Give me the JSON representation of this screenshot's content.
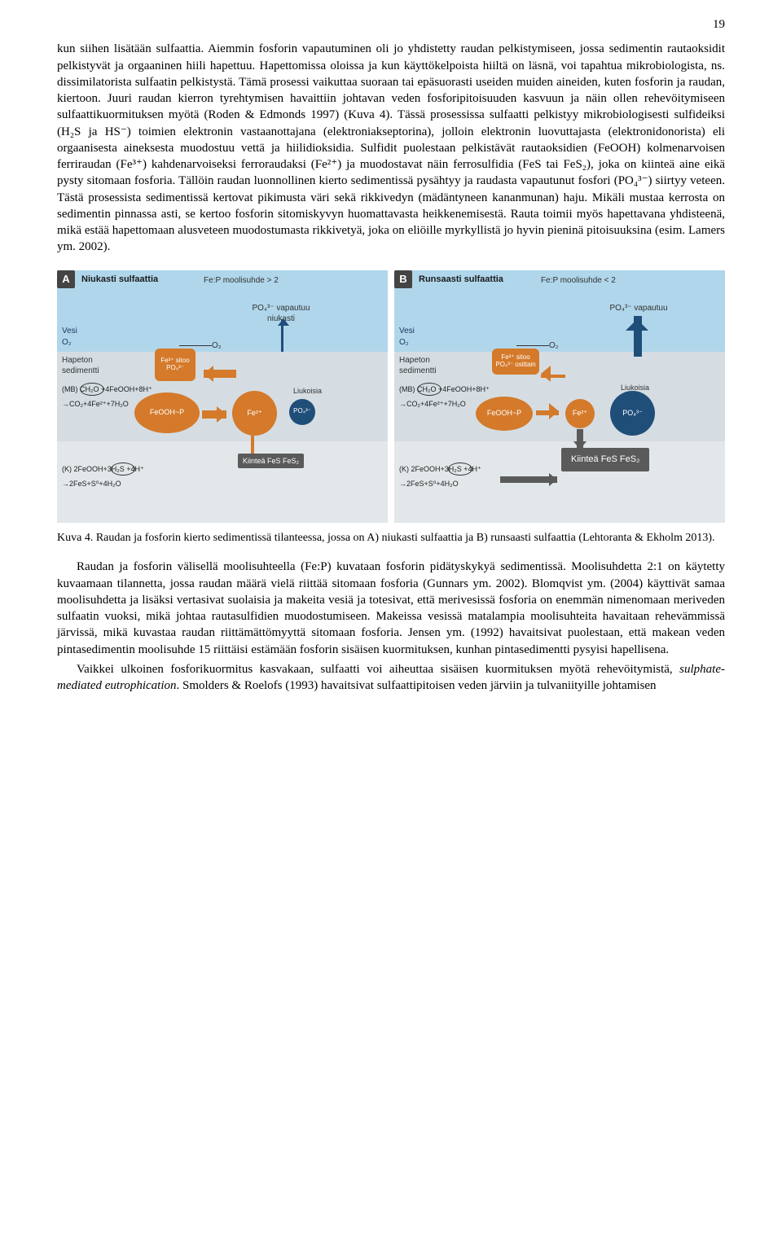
{
  "page_number": "19",
  "para1": "kun siihen lisätään sulfaattia. Aiemmin fosforin vapautuminen oli jo yhdistetty raudan pelkistymiseen, jossa sedimentin rautaoksidit pelkistyvät ja orgaaninen hiili hapettuu. Hapettomissa oloissa ja kun käyttökelpoista hiiltä on läsnä, voi tapahtua mikrobiologista, ns. dissimilatorista sulfaatin pelkistystä. Tämä prosessi vaikuttaa suoraan tai epäsuorasti useiden muiden aineiden, kuten fosforin ja raudan, kiertoon. Juuri raudan kierron tyrehtymisen havaittiin johtavan veden fosforipitoisuuden kasvuun ja näin ollen rehevöitymiseen sulfaattikuormituksen myötä (Roden & Edmonds 1997) (Kuva 4). Tässä prosessissa sulfaatti pelkistyy mikrobiologisesti sulfideiksi (H₂S ja HS⁻) toimien elektronin vastaanottajana (elektroniakseptorina), jolloin elektronin luovuttajasta (elektronidonorista) eli orgaanisesta aineksesta muodostuu vettä ja hiilidioksidia. Sulfidit puolestaan pelkistävät rautaoksidien (FeOOH) kolmenarvoisen ferriraudan (Fe³⁺) kahdenarvoiseksi ferroraudaksi (Fe²⁺) ja muodostavat näin ferrosulfidia (FeS tai FeS₂), joka on kiinteä aine eikä pysty sitomaan fosforia. Tällöin raudan luonnollinen kierto sedimentissä pysähtyy ja raudasta vapautunut fosfori (PO₄³⁻) siirtyy veteen. Tästä prosessista sedimentissä kertovat pikimusta väri sekä rikkivedyn (mädäntyneen kananmunan) haju. Mikäli mustaa kerrosta on sedimentin pinnassa asti, se kertoo fosforin sitomiskyvyn huomattavasta heikkenemisestä. Rauta toimii myös hapettavana yhdisteenä, mikä estää hapettomaan alusveteen muodostumasta rikkivetyä, joka on eliöille myrkyllistä jo hyvin pieninä pitoisuuksina (esim. Lamers ym. 2002).",
  "caption": "Kuva 4. Raudan ja fosforin kierto sedimentissä tilanteessa, jossa on A) niukasti sulfaattia ja B) runsaasti sulfaattia (Lehtoranta & Ekholm 2013).",
  "para2": "Raudan ja fosforin välisellä moolisuhteella (Fe:P) kuvataan fosforin pidätyskykyä sedimentissä. Moolisuhdetta 2:1 on käytetty kuvaamaan tilannetta, jossa raudan määrä vielä riittää sitomaan fosforia (Gunnars ym. 2002). Blomqvist ym. (2004) käyttivät samaa moolisuhdetta ja lisäksi vertasivat suolaisia ja makeita vesiä ja totesivat, että merivesissä fosforia on enemmän nimenomaan meriveden sulfaatin vuoksi, mikä johtaa rautasulfidien muodostumiseen. Makeissa vesissä matalampia moolisuhteita havaitaan rehevämmissä järvissä, mikä kuvastaa raudan riittämättömyyttä sitomaan fosforia. Jensen ym. (1992) havaitsivat puolestaan, että makean veden pintasedimentin moolisuhde 15 riittäisi estämään fosforin sisäisen kuormituksen, kunhan pintasedimentti pysyisi hapellisena.",
  "para3": "Vaikkei ulkoinen fosforikuormitus kasvakaan, sulfaatti voi aiheuttaa sisäisen kuormituksen myötä rehevöitymistä, sulphate-mediated eutrophication. Smolders & Roelofs (1993) havaitsivat sulfaattipitoisen veden järviin ja tulvaniityille johtamisen",
  "figure": {
    "panels": [
      {
        "badge": "A",
        "title": "Niukasti sulfaattia",
        "feratio": "Fe:P moolisuhde > 2",
        "po4_release": "PO₄³⁻ vapautuu niukasti",
        "fe3_binds": "Fe³⁺ sitoo PO₄³⁻",
        "kbox": "Kiinteä\nFeS\nFeS₂",
        "water_label": "Vesi",
        "o2_label": "O₂",
        "sed_label": "Hapeton sedimentti",
        "eq1": "(MB) CH₂O +4FeOOH+8H⁺",
        "eq2": "→CO₂+4Fe²⁺+7H₂O",
        "eq3": "(K) 2FeOOH+3H₂S +4H⁺",
        "eq4": "→2FeS+S⁰+4H₂O",
        "feooh_p": "FeOOH~P",
        "fe2": "Fe²⁺",
        "po4": "PO₄³⁻",
        "liuk": "Liukoisia",
        "colors": {
          "water": "#b0d6eb",
          "sed1": "#d5dde2",
          "sed2": "#e2e7ea",
          "orange": "#d47a2a",
          "blue": "#1f4e79",
          "grey": "#5a5a5a"
        }
      },
      {
        "badge": "B",
        "title": "Runsaasti sulfaattia",
        "feratio": "Fe:P moolisuhde < 2",
        "po4_release": "PO₄³⁻ vapautuu",
        "fe3_binds": "Fe³⁺ sitoo PO₄³⁻ osittain",
        "kbox": "Kiinteä\nFeS\nFeS₂",
        "water_label": "Vesi",
        "o2_label": "O₂",
        "sed_label": "Hapeton sedimentti",
        "eq1": "(MB) CH₂O +4FeOOH+8H⁺",
        "eq2": "→CO₂+4Fe²⁺+7H₂O",
        "eq3": "(K) 2FeOOH+3H₂S +4H⁺",
        "eq4": "→2FeS+S⁰+4H₂O",
        "feooh_p": "FeOOH~P",
        "fe2": "Fe²⁺",
        "po4": "PO₄³⁻",
        "liuk": "Liukoisia",
        "colors": {
          "water": "#b0d6eb",
          "sed1": "#d5dde2",
          "sed2": "#e2e7ea",
          "orange": "#d47a2a",
          "blue": "#1f4e79",
          "grey": "#5a5a5a"
        }
      }
    ]
  }
}
